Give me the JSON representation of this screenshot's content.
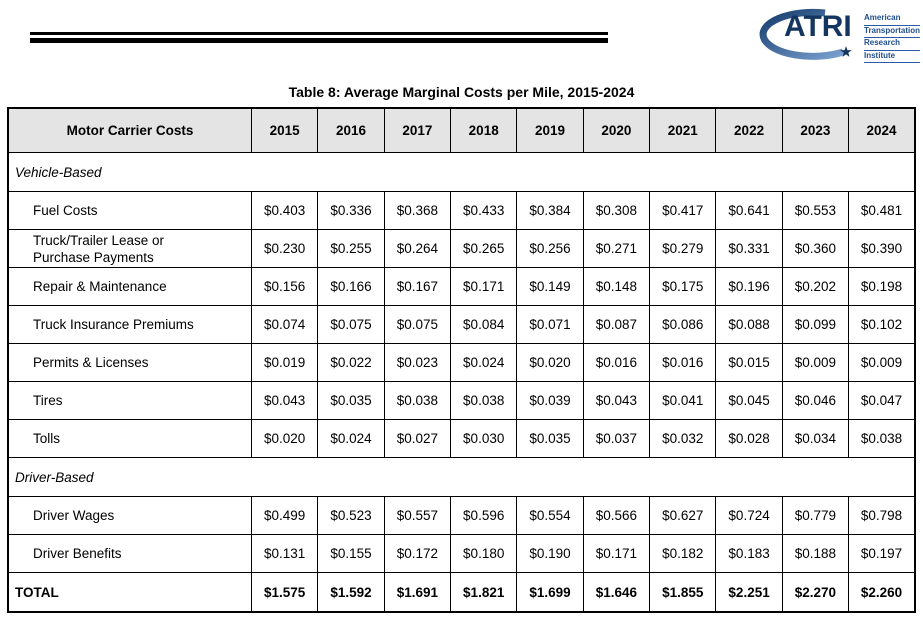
{
  "logo": {
    "brand": "ATRI",
    "org_lines": [
      "American",
      "Transportation",
      "Research",
      "Institute"
    ],
    "colors": {
      "navy": "#14355f",
      "blue": "#1f4e8c",
      "gradient_end": "#7ba1d0"
    }
  },
  "table": {
    "title": "Table 8: Average Marginal Costs per Mile, 2015-2024",
    "header": {
      "label": "Motor Carrier Costs",
      "years": [
        "2015",
        "2016",
        "2017",
        "2018",
        "2019",
        "2020",
        "2021",
        "2022",
        "2023",
        "2024"
      ]
    },
    "sections": [
      {
        "name": "Vehicle-Based",
        "rows": [
          {
            "label": "Fuel Costs",
            "values": [
              "$0.403",
              "$0.336",
              "$0.368",
              "$0.433",
              "$0.384",
              "$0.308",
              "$0.417",
              "$0.641",
              "$0.553",
              "$0.481"
            ]
          },
          {
            "label": "Truck/Trailer Lease or\nPurchase Payments",
            "values": [
              "$0.230",
              "$0.255",
              "$0.264",
              "$0.265",
              "$0.256",
              "$0.271",
              "$0.279",
              "$0.331",
              "$0.360",
              "$0.390"
            ]
          },
          {
            "label": "Repair & Maintenance",
            "values": [
              "$0.156",
              "$0.166",
              "$0.167",
              "$0.171",
              "$0.149",
              "$0.148",
              "$0.175",
              "$0.196",
              "$0.202",
              "$0.198"
            ]
          },
          {
            "label": "Truck Insurance Premiums",
            "values": [
              "$0.074",
              "$0.075",
              "$0.075",
              "$0.084",
              "$0.071",
              "$0.087",
              "$0.086",
              "$0.088",
              "$0.099",
              "$0.102"
            ]
          },
          {
            "label": "Permits & Licenses",
            "values": [
              "$0.019",
              "$0.022",
              "$0.023",
              "$0.024",
              "$0.020",
              "$0.016",
              "$0.016",
              "$0.015",
              "$0.009",
              "$0.009"
            ]
          },
          {
            "label": "Tires",
            "values": [
              "$0.043",
              "$0.035",
              "$0.038",
              "$0.038",
              "$0.039",
              "$0.043",
              "$0.041",
              "$0.045",
              "$0.046",
              "$0.047"
            ]
          },
          {
            "label": "Tolls",
            "values": [
              "$0.020",
              "$0.024",
              "$0.027",
              "$0.030",
              "$0.035",
              "$0.037",
              "$0.032",
              "$0.028",
              "$0.034",
              "$0.038"
            ]
          }
        ]
      },
      {
        "name": "Driver-Based",
        "rows": [
          {
            "label": "Driver Wages",
            "values": [
              "$0.499",
              "$0.523",
              "$0.557",
              "$0.596",
              "$0.554",
              "$0.566",
              "$0.627",
              "$0.724",
              "$0.779",
              "$0.798"
            ]
          },
          {
            "label": "Driver Benefits",
            "values": [
              "$0.131",
              "$0.155",
              "$0.172",
              "$0.180",
              "$0.190",
              "$0.171",
              "$0.182",
              "$0.183",
              "$0.188",
              "$0.197"
            ]
          }
        ]
      }
    ],
    "total": {
      "label": "TOTAL",
      "values": [
        "$1.575",
        "$1.592",
        "$1.691",
        "$1.821",
        "$1.699",
        "$1.646",
        "$1.855",
        "$2.251",
        "$2.270",
        "$2.260"
      ]
    }
  }
}
